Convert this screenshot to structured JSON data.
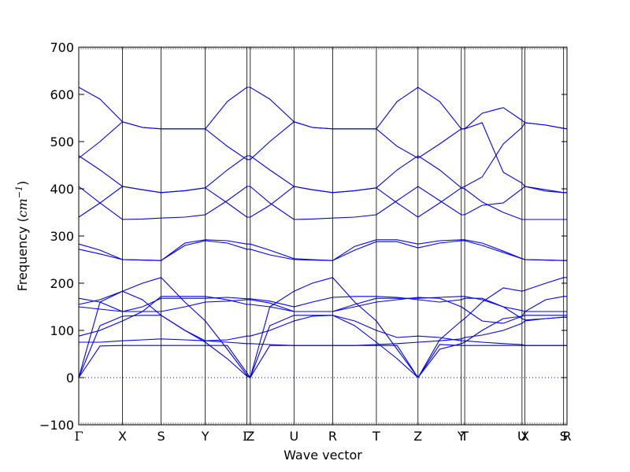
{
  "chart_data": {
    "type": "line",
    "title": "",
    "xlabel": "Wave vector",
    "ylabel": {
      "prefix": "Frequency (",
      "unit": "cm",
      "exponent": "−1",
      "suffix": ")"
    },
    "ylim": [
      -100,
      700
    ],
    "yticks": [
      "−100",
      "0",
      "100",
      "200",
      "300",
      "400",
      "500",
      "600",
      "700"
    ],
    "ytick_values": [
      -100,
      0,
      100,
      200,
      300,
      400,
      500,
      600,
      700
    ],
    "xlim": [
      0,
      11.5
    ],
    "high_symmetry_points": [
      {
        "label": "Γ",
        "x": 0
      },
      {
        "label": "X",
        "x": 1.03
      },
      {
        "label": "S",
        "x": 1.94
      },
      {
        "label": "Y",
        "x": 2.98
      },
      {
        "label": "Γ",
        "x": 3.96
      },
      {
        "label": "Z",
        "x": 4.04
      },
      {
        "label": "U",
        "x": 5.07
      },
      {
        "label": "R",
        "x": 5.98
      },
      {
        "label": "T",
        "x": 7.01
      },
      {
        "label": "Z",
        "x": 7.99
      },
      {
        "label": "Y",
        "x": 9.01
      },
      {
        "label": "T",
        "x": 9.09
      },
      {
        "label": "U",
        "x": 10.44
      },
      {
        "label": "X",
        "x": 10.51
      },
      {
        "label": "S",
        "x": 11.42
      },
      {
        "label": "R",
        "x": 11.5
      }
    ],
    "zero_line": {
      "y": 0,
      "style": "dotted"
    },
    "grid": false,
    "legend": "none",
    "series": [
      {
        "x": [
          0,
          0.5,
          1.03,
          1.5,
          1.94,
          2.5,
          2.98,
          3.5,
          3.96,
          4.04,
          4.5,
          5.07,
          5.5,
          5.98,
          6.5,
          7.01,
          7.5,
          7.99,
          8.5,
          9.01,
          9.09,
          9.5,
          10.0,
          10.44,
          10.51,
          11.0,
          11.42,
          11.5
        ],
        "y": [
          0,
          67,
          68,
          68,
          68,
          68,
          68,
          68,
          10,
          0,
          68,
          68,
          68,
          68,
          68,
          68,
          68,
          0,
          70,
          68,
          68,
          68,
          68,
          68,
          68,
          68,
          68,
          68
        ]
      },
      {
        "x": [
          0,
          0.5,
          1.03,
          1.5,
          1.94,
          2.5,
          2.98,
          3.5,
          3.96,
          4.04,
          4.5,
          5.07,
          5.5,
          5.98,
          6.5,
          7.01,
          7.5,
          7.99,
          8.5,
          9.01,
          9.09,
          9.5,
          10.0,
          10.44,
          10.51,
          11.0,
          11.42,
          11.5
        ],
        "y": [
          0,
          110,
          130,
          132,
          132,
          100,
          75,
          40,
          3,
          0,
          110,
          132,
          132,
          132,
          110,
          75,
          40,
          0,
          60,
          72,
          75,
          100,
          125,
          130,
          132,
          132,
          132,
          132
        ]
      },
      {
        "x": [
          0,
          0.5,
          1.03,
          1.5,
          1.94,
          2.5,
          2.98,
          3.5,
          3.96,
          4.04,
          4.5,
          5.07,
          5.5,
          5.98,
          6.5,
          7.01,
          7.5,
          7.99,
          8.5,
          9.01,
          9.09,
          9.5,
          10.0,
          10.44,
          10.51,
          11.0,
          11.42,
          11.5
        ],
        "y": [
          0,
          160,
          183,
          200,
          212,
          160,
          120,
          60,
          5,
          0,
          150,
          183,
          200,
          212,
          160,
          120,
          60,
          0,
          80,
          120,
          125,
          160,
          190,
          183,
          185,
          200,
          212,
          212
        ]
      },
      {
        "x": [
          0,
          0.5,
          1.03,
          1.5,
          1.94,
          2.5,
          2.98,
          3.5,
          3.96,
          4.04,
          4.5,
          5.07,
          5.5,
          5.98,
          6.5,
          7.01,
          7.5,
          7.99,
          8.5,
          9.01,
          9.09,
          9.5,
          10.0,
          10.44,
          10.51,
          11.0,
          11.42,
          11.5
        ],
        "y": [
          88,
          100,
          120,
          140,
          172,
          172,
          172,
          165,
          155,
          155,
          150,
          140,
          140,
          140,
          150,
          160,
          165,
          170,
          168,
          150,
          145,
          120,
          115,
          130,
          140,
          165,
          172,
          172
        ]
      },
      {
        "x": [
          0,
          0.5,
          1.03,
          1.5,
          1.94,
          2.5,
          2.98,
          3.5,
          3.96,
          4.04,
          4.5,
          5.07,
          5.5,
          5.98,
          6.5,
          7.01,
          7.5,
          7.99,
          8.5,
          9.01,
          9.09,
          9.5,
          10.0,
          10.44,
          10.51,
          11.0,
          11.42,
          11.5
        ],
        "y": [
          150,
          145,
          140,
          140,
          140,
          150,
          160,
          162,
          165,
          165,
          158,
          140,
          140,
          140,
          155,
          168,
          168,
          168,
          170,
          172,
          172,
          165,
          150,
          142,
          140,
          140,
          140,
          140
        ]
      },
      {
        "x": [
          0,
          0.5,
          1.03,
          1.5,
          1.94,
          2.5,
          2.98,
          3.5,
          3.96,
          4.04,
          4.5,
          5.07,
          5.5,
          5.98,
          6.5,
          7.01,
          7.5,
          7.99,
          8.5,
          9.01,
          9.09,
          9.5,
          10.0,
          10.44,
          10.51,
          11.0,
          11.42,
          11.5
        ],
        "y": [
          168,
          160,
          140,
          150,
          168,
          168,
          168,
          170,
          167,
          167,
          162,
          150,
          160,
          170,
          172,
          172,
          170,
          165,
          160,
          165,
          168,
          168,
          150,
          125,
          122,
          125,
          128,
          128
        ]
      },
      {
        "x": [
          0,
          0.5,
          1.03,
          1.5,
          1.94,
          2.5,
          2.98,
          3.5,
          3.96,
          4.04,
          4.5,
          5.07,
          5.5,
          5.98,
          6.5,
          7.01,
          7.5,
          7.99,
          8.5,
          9.01,
          9.09,
          9.5,
          10.0,
          10.44,
          10.51,
          11.0,
          11.42,
          11.5
        ],
        "y": [
          75,
          75,
          78,
          80,
          82,
          80,
          78,
          75,
          72,
          72,
          70,
          68,
          68,
          68,
          68,
          70,
          72,
          75,
          78,
          82,
          85,
          90,
          100,
          115,
          120,
          125,
          128,
          128
        ]
      },
      {
        "x": [
          0,
          0.5,
          1.03,
          1.5,
          1.94,
          2.5,
          2.98,
          3.5,
          3.96,
          4.04,
          4.5,
          5.07,
          5.5,
          5.98,
          6.5,
          7.01,
          7.5,
          7.99,
          8.5,
          9.01,
          9.09,
          9.5,
          10.0,
          10.44,
          10.51,
          11.0,
          11.42,
          11.5
        ],
        "y": [
          155,
          165,
          183,
          165,
          132,
          100,
          78,
          80,
          88,
          88,
          100,
          120,
          130,
          132,
          120,
          100,
          85,
          88,
          85,
          78,
          78,
          75,
          72,
          70,
          68,
          68,
          68,
          68
        ]
      },
      {
        "x": [
          0,
          0.5,
          1.03,
          1.5,
          1.94,
          2.5,
          2.98,
          3.5,
          3.96,
          4.04,
          4.5,
          5.07,
          5.5,
          5.98,
          6.5,
          7.01,
          7.5,
          7.99,
          8.5,
          9.01,
          9.09,
          9.5,
          10.0,
          10.44,
          10.51,
          11.0,
          11.42,
          11.5
        ],
        "y": [
          272,
          262,
          250,
          249,
          248,
          280,
          290,
          285,
          272,
          272,
          260,
          250,
          249,
          248,
          270,
          288,
          288,
          275,
          285,
          290,
          290,
          280,
          265,
          252,
          250,
          249,
          248,
          248
        ]
      },
      {
        "x": [
          0,
          0.5,
          1.03,
          1.5,
          1.94,
          2.5,
          2.98,
          3.5,
          3.96,
          4.04,
          4.5,
          5.07,
          5.5,
          5.98,
          6.5,
          7.01,
          7.5,
          7.99,
          8.5,
          9.01,
          9.09,
          9.5,
          10.0,
          10.44,
          10.51,
          11.0,
          11.42,
          11.5
        ],
        "y": [
          283,
          270,
          250,
          249,
          248,
          285,
          292,
          290,
          283,
          283,
          270,
          252,
          250,
          248,
          278,
          292,
          292,
          283,
          290,
          292,
          292,
          285,
          268,
          252,
          250,
          249,
          248,
          248
        ]
      },
      {
        "x": [
          0,
          0.5,
          1.03,
          1.5,
          1.94,
          2.5,
          2.98,
          3.5,
          3.96,
          4.04,
          4.5,
          5.07,
          5.5,
          5.98,
          6.5,
          7.01,
          7.5,
          7.99,
          8.5,
          9.01,
          9.09,
          9.5,
          10.0,
          10.44,
          10.51,
          11.0,
          11.42,
          11.5
        ],
        "y": [
          340,
          370,
          405,
          398,
          392,
          396,
          402,
          370,
          340,
          340,
          365,
          405,
          398,
          392,
          396,
          402,
          370,
          340,
          370,
          402,
          400,
          372,
          350,
          335,
          335,
          335,
          335,
          335
        ]
      },
      {
        "x": [
          0,
          0.5,
          1.03,
          1.5,
          1.94,
          2.5,
          2.98,
          3.5,
          3.96,
          4.04,
          4.5,
          5.07,
          5.5,
          5.98,
          6.5,
          7.01,
          7.5,
          7.99,
          8.5,
          9.01,
          9.09,
          9.5,
          10.0,
          10.44,
          10.51,
          11.0,
          11.42,
          11.5
        ],
        "y": [
          405,
          370,
          335,
          336,
          338,
          340,
          345,
          375,
          405,
          405,
          370,
          335,
          336,
          338,
          340,
          345,
          375,
          405,
          375,
          345,
          345,
          365,
          370,
          400,
          405,
          398,
          392,
          392
        ]
      },
      {
        "x": [
          0,
          0.5,
          1.03,
          1.5,
          1.94,
          2.5,
          2.98,
          3.5,
          3.96,
          4.04,
          4.5,
          5.07,
          5.5,
          5.98,
          6.5,
          7.01,
          7.5,
          7.99,
          8.5,
          9.01,
          9.09,
          9.5,
          10.0,
          10.44,
          10.51,
          11.0,
          11.42,
          11.5
        ],
        "y": [
          465,
          500,
          542,
          530,
          527,
          527,
          527,
          490,
          462,
          462,
          500,
          542,
          530,
          527,
          527,
          527,
          490,
          465,
          495,
          527,
          527,
          540,
          435,
          412,
          405,
          395,
          392,
          392
        ]
      },
      {
        "x": [
          0,
          0.5,
          1.03,
          1.5,
          1.94,
          2.5,
          2.98,
          3.5,
          3.96,
          4.04,
          4.5,
          5.07,
          5.5,
          5.98,
          6.5,
          7.01,
          7.5,
          7.99,
          8.5,
          9.01,
          9.09,
          9.5,
          10.0,
          10.44,
          10.51,
          11.0,
          11.42,
          11.5
        ],
        "y": [
          470,
          440,
          405,
          398,
          392,
          396,
          402,
          440,
          470,
          470,
          440,
          405,
          398,
          392,
          396,
          402,
          440,
          470,
          440,
          402,
          405,
          425,
          495,
          530,
          540,
          535,
          528,
          527
        ]
      },
      {
        "x": [
          0,
          0.5,
          1.03,
          1.5,
          1.94,
          2.5,
          2.98,
          3.5,
          3.96,
          4.04,
          4.5,
          5.07,
          5.5,
          5.98,
          6.5,
          7.01,
          7.5,
          7.99,
          8.5,
          9.01,
          9.09,
          9.5,
          10.0,
          10.44,
          10.51,
          11.0,
          11.42,
          11.5
        ],
        "y": [
          615,
          590,
          542,
          530,
          527,
          527,
          527,
          585,
          615,
          615,
          590,
          542,
          530,
          527,
          527,
          527,
          585,
          615,
          585,
          527,
          527,
          560,
          572,
          545,
          540,
          535,
          528,
          527
        ]
      }
    ]
  }
}
